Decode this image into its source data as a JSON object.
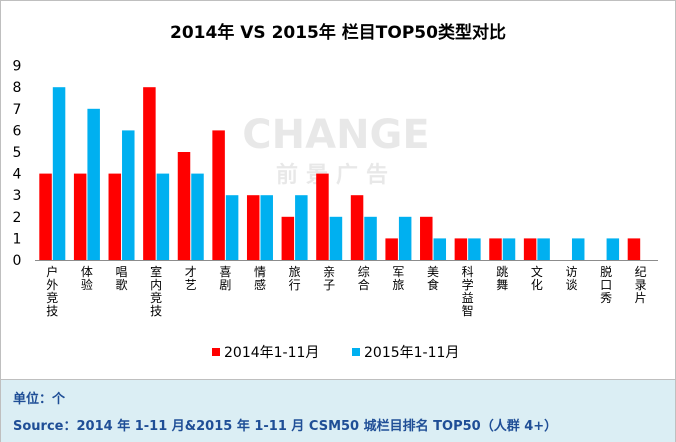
{
  "chart_data": {
    "type": "bar",
    "title": "2014年 VS 2015年 栏目TOP50类型对比",
    "categories": [
      "户外竞技",
      "体验",
      "唱歌",
      "室内竞技",
      "才艺",
      "喜剧",
      "情感",
      "旅行",
      "亲子",
      "综合",
      "军旅",
      "美食",
      "科学益智",
      "跳舞",
      "文化",
      "访谈",
      "脱口秀",
      "纪录片"
    ],
    "series": [
      {
        "name": "2014年1-11月",
        "color": "#ff0000",
        "values": [
          4,
          4,
          4,
          8,
          5,
          6,
          3,
          2,
          4,
          3,
          1,
          2,
          1,
          1,
          1,
          0,
          0,
          1
        ]
      },
      {
        "name": "2015年1-11月",
        "color": "#00b0f0",
        "values": [
          8,
          7,
          6,
          4,
          4,
          3,
          3,
          3,
          2,
          2,
          2,
          1,
          1,
          1,
          1,
          1,
          1,
          0
        ]
      }
    ],
    "yticks": [
      0,
      1,
      2,
      3,
      4,
      5,
      6,
      7,
      8,
      9
    ],
    "ylim": [
      0,
      9
    ],
    "grid": false,
    "legend_position": "bottom"
  },
  "watermark": {
    "line1": "CHANGE",
    "line2": "前景广告"
  },
  "footer": {
    "unit": "单位：个",
    "source": "Source：2014 年 1-11 月&2015 年 1-11 月  CSM50 城栏目排名 TOP50（人群 4+）"
  }
}
